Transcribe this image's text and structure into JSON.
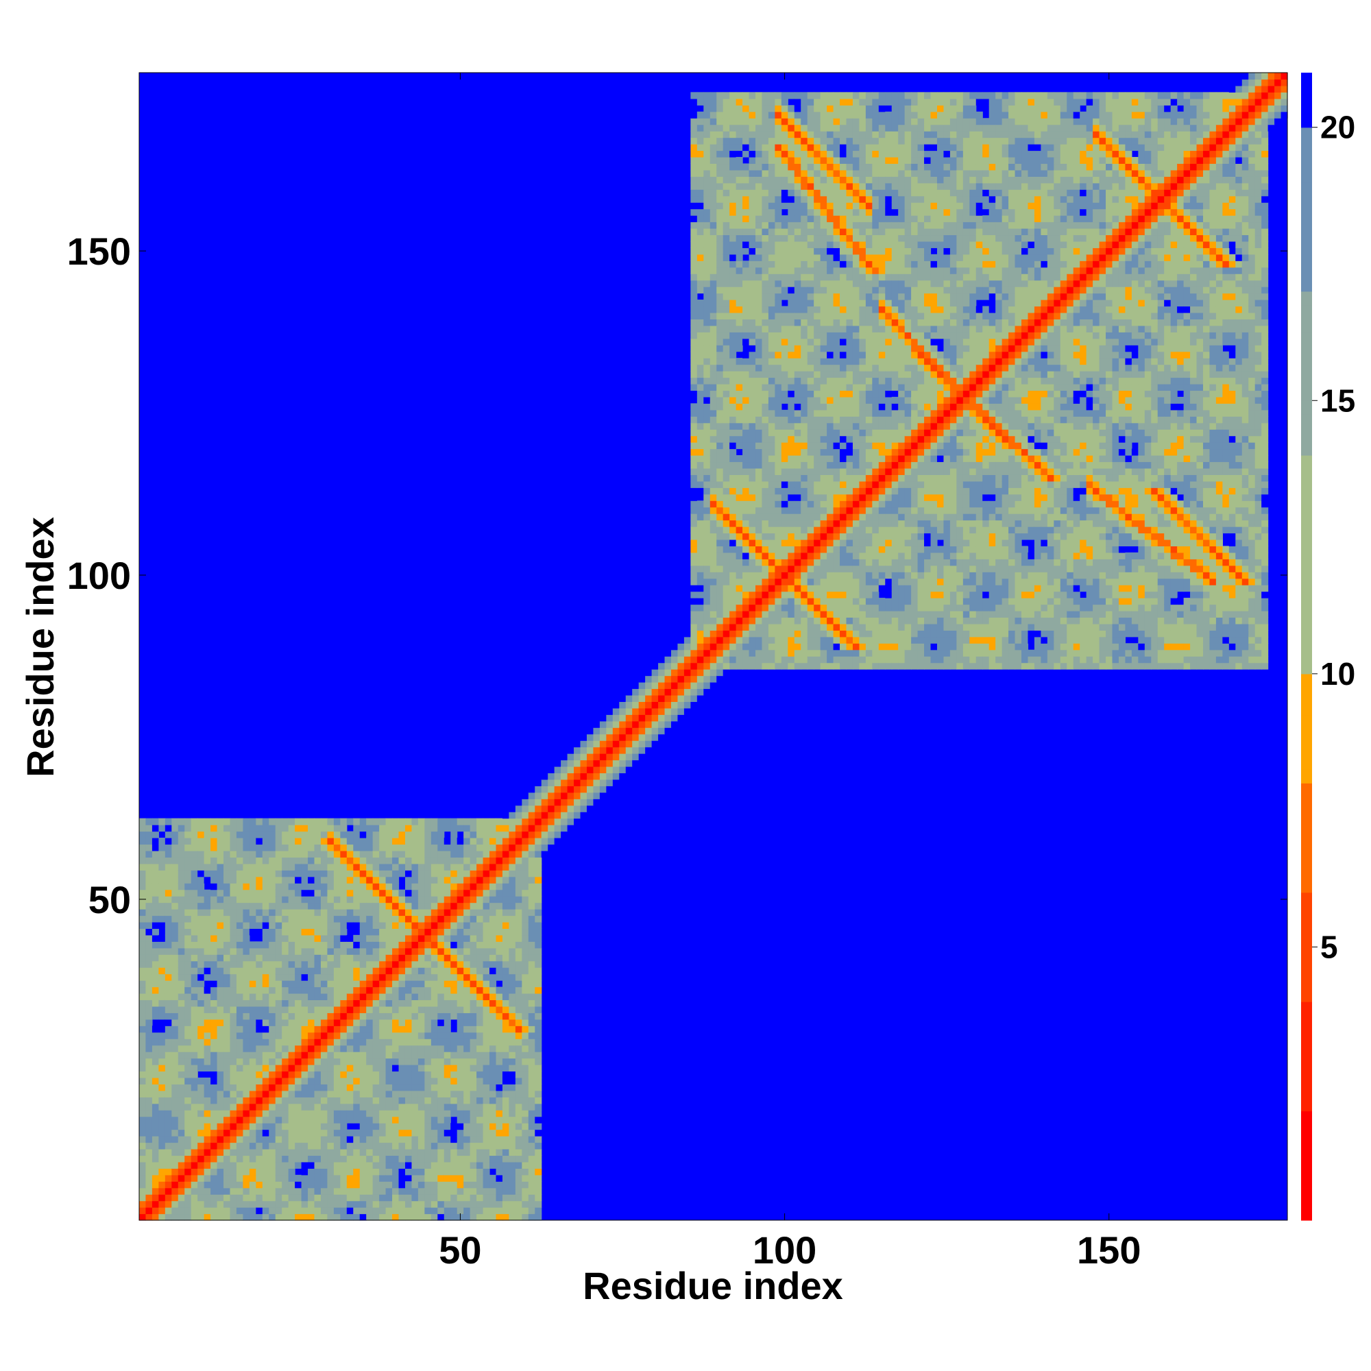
{
  "chart_data": {
    "type": "heatmap",
    "title": "",
    "xlabel": "Residue index",
    "ylabel": "Residue index",
    "xlim": [
      1,
      177
    ],
    "ylim": [
      1,
      177
    ],
    "x_ticks": [
      50,
      100,
      150
    ],
    "y_ticks": [
      50,
      100,
      150
    ],
    "colorbar": {
      "range": [
        0,
        21
      ],
      "ticks": [
        5,
        10,
        15,
        20
      ],
      "colors": [
        "#ff0000",
        "#ff6a00",
        "#ffa500",
        "#a6be8a",
        "#8fa9a0",
        "#6a8fb4",
        "#0000ff"
      ],
      "stops": [
        0,
        6,
        8,
        10,
        14,
        20,
        21
      ]
    },
    "background_color": "#0000ff",
    "matrix_description": "Symmetric residue–residue distance map (distance in colorbar units); values below 21 are colored, others shown as background blue",
    "structure": {
      "diagonal": {
        "start": 1,
        "end": 177
      },
      "domains": [
        {
          "start": 1,
          "end": 62
        },
        {
          "start": 86,
          "end": 174
        }
      ],
      "cross_contacts": [
        {
          "i_start": 31,
          "i_end": 58,
          "j_start": 58,
          "j_end": 31
        },
        {
          "i_start": 90,
          "i_end": 108,
          "j_start": 110,
          "j_end": 92
        },
        {
          "i_start": 116,
          "i_end": 133,
          "j_start": 140,
          "j_end": 122
        },
        {
          "i_start": 149,
          "i_end": 165,
          "j_start": 167,
          "j_end": 151
        },
        {
          "i_start": 100,
          "i_end": 112,
          "j_start": 170,
          "j_end": 158
        },
        {
          "i_start": 148,
          "i_end": 165,
          "j_start": 113,
          "j_end": 100
        }
      ]
    }
  }
}
